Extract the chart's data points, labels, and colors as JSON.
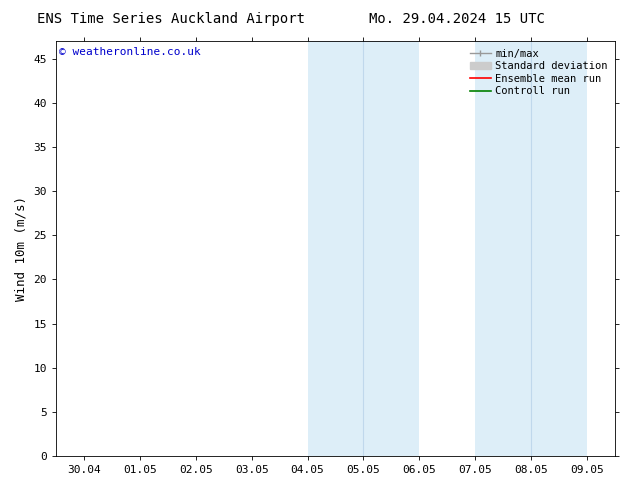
{
  "title_left": "ENS Time Series Auckland Airport",
  "title_right": "Mo. 29.04.2024 15 UTC",
  "ylabel": "Wind 10m (m/s)",
  "watermark": "© weatheronline.co.uk",
  "watermark_color": "#0000cc",
  "ylim": [
    0,
    47
  ],
  "yticks": [
    0,
    5,
    10,
    15,
    20,
    25,
    30,
    35,
    40,
    45
  ],
  "xtick_labels": [
    "30.04",
    "01.05",
    "02.05",
    "03.05",
    "04.05",
    "05.05",
    "06.05",
    "07.05",
    "08.05",
    "09.05"
  ],
  "xtick_positions": [
    0,
    1,
    2,
    3,
    4,
    5,
    6,
    7,
    8,
    9
  ],
  "shade_bands": [
    {
      "x_start": 4.0,
      "x_end": 6.0,
      "color": "#ddeef8"
    },
    {
      "x_start": 7.0,
      "x_end": 9.0,
      "color": "#ddeef8"
    }
  ],
  "shade_dividers": [
    {
      "x": 5.0,
      "color": "#c0d8ec"
    },
    {
      "x": 8.0,
      "color": "#c0d8ec"
    }
  ],
  "legend_items": [
    {
      "label": "min/max",
      "color": "#999999"
    },
    {
      "label": "Standard deviation",
      "color": "#cccccc"
    },
    {
      "label": "Ensemble mean run",
      "color": "#ff0000"
    },
    {
      "label": "Controll run",
      "color": "#008000"
    }
  ],
  "bg_color": "#ffffff",
  "tick_fontsize": 8,
  "label_fontsize": 9,
  "title_fontsize": 10,
  "watermark_fontsize": 8
}
